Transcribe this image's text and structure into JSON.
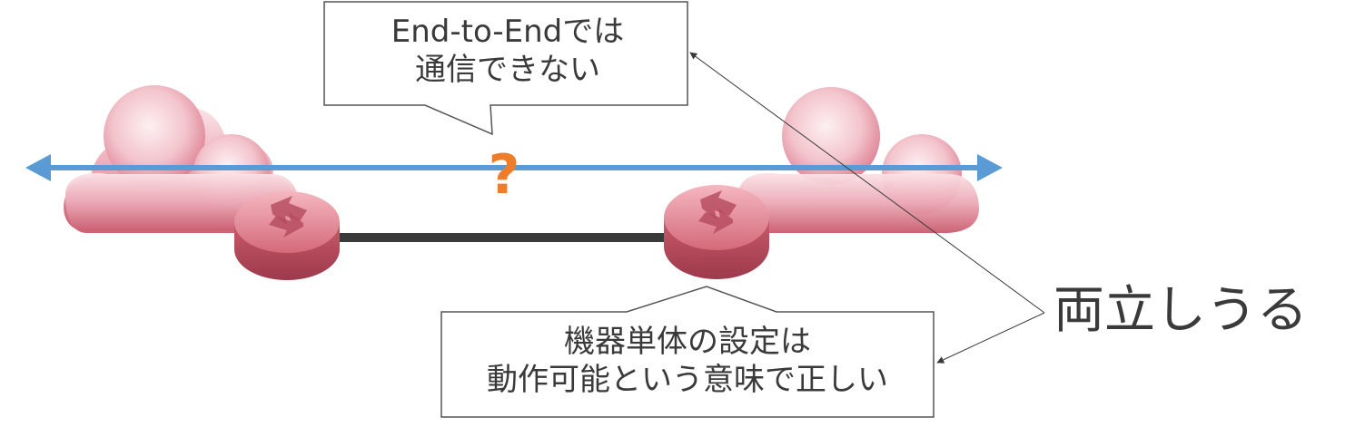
{
  "callout_top": {
    "lines": [
      "End-to-Endでは",
      "通信できない"
    ]
  },
  "callout_bottom": {
    "lines": [
      "機器単体の設定は",
      "動作可能という意味で正しい"
    ]
  },
  "question_mark": "?",
  "side_label": "両立しうる",
  "colors": {
    "arrow": "#5b9bd5",
    "cloud": "#e89aa8",
    "router": "#d9707f",
    "link": "#3a3a3a",
    "question": "#ee7d2b",
    "text": "#3a3a3a"
  },
  "icons": [
    "cloud-icon",
    "router-icon",
    "arrow-icon"
  ]
}
